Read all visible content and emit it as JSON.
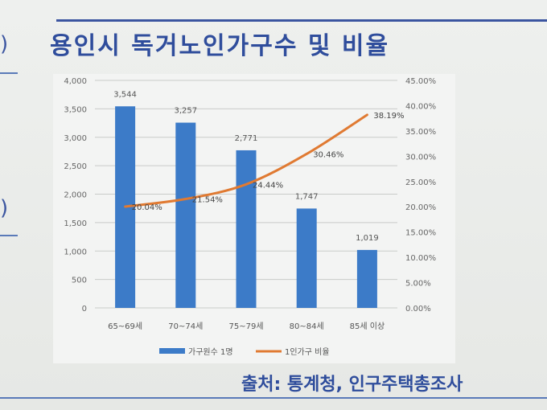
{
  "page": {
    "title": "용인시 독거노인가구수 및 비율",
    "source": "출처: 통계청, 인구주택총조사",
    "side_marks": [
      ")",
      ")"
    ]
  },
  "chart_data": {
    "type": "bar",
    "title": "",
    "xlabel": "",
    "ylabel": "",
    "categories": [
      "65~69세",
      "70~74세",
      "75~79세",
      "80~84세",
      "85세 이상"
    ],
    "series": [
      {
        "name": "가구원수 1명",
        "type": "bar",
        "axis": "left",
        "color": "#3c7bc8",
        "values": [
          3544,
          3257,
          2771,
          1747,
          1019
        ],
        "labels": [
          "3,544",
          "3,257",
          "2,771",
          "1,747",
          "1,019"
        ]
      },
      {
        "name": "1인가구 비율",
        "type": "line",
        "axis": "right",
        "color": "#e07a32",
        "values": [
          20.04,
          21.54,
          24.44,
          30.46,
          38.19
        ],
        "labels": [
          "20.04%",
          "21.54%",
          "24.44%",
          "30.46%",
          "38.19%"
        ]
      }
    ],
    "ylim": [
      0,
      4000
    ],
    "y_ticks": [
      "0",
      "500",
      "1,000",
      "1,500",
      "2,000",
      "2,500",
      "3,000",
      "3,500",
      "4,000"
    ],
    "y2lim": [
      0,
      45
    ],
    "y2_ticks": [
      "0.00%",
      "5.00%",
      "10.00%",
      "15.00%",
      "20.00%",
      "25.00%",
      "30.00%",
      "35.00%",
      "40.00%",
      "45.00%"
    ],
    "grid": true,
    "legend_position": "bottom"
  }
}
